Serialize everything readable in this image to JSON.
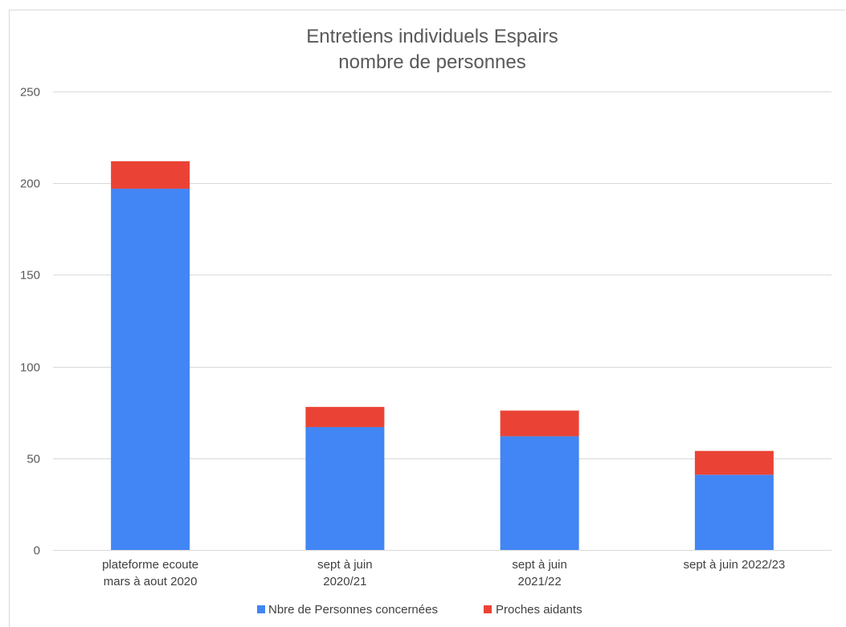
{
  "chart_data": {
    "type": "bar",
    "stacked": true,
    "title_lines": [
      "Entretiens individuels Espairs",
      "nombre de personnes"
    ],
    "categories": [
      [
        "plateforme ecoute",
        "mars à aout 2020"
      ],
      [
        "sept à juin",
        "2020/21"
      ],
      [
        "sept à juin",
        "2021/22"
      ],
      [
        "sept à juin 2022/23"
      ]
    ],
    "series": [
      {
        "name": "Nbre de Personnes concernées",
        "color": "#4285F4",
        "values": [
          197,
          67,
          62,
          41
        ]
      },
      {
        "name": "Proches aidants",
        "color": "#EA4335",
        "values": [
          15,
          11,
          14,
          13
        ]
      }
    ],
    "ylim": [
      0,
      250
    ],
    "yticks": [
      0,
      50,
      100,
      150,
      200,
      250
    ],
    "grid": true,
    "legend_position": "bottom",
    "xlabel": "",
    "ylabel": ""
  }
}
